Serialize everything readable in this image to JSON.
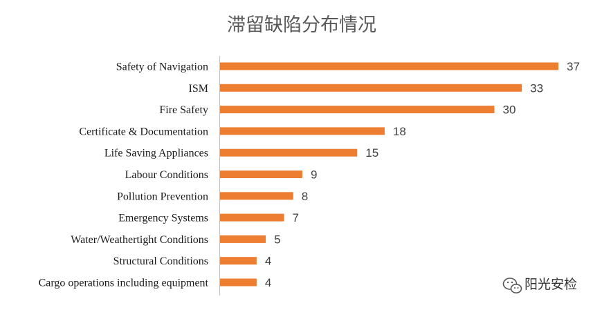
{
  "chart_data": {
    "type": "bar",
    "orientation": "horizontal",
    "title": "滞留缺陷分布情况",
    "categories": [
      "Safety of Navigation",
      "ISM",
      "Fire Safety",
      "Certificate & Documentation",
      "Life Saving Appliances",
      "Labour Conditions",
      "Pollution Prevention",
      "Emergency Systems",
      "Water/Weathertight Conditions",
      "Structural Conditions",
      "Cargo operations including equipment"
    ],
    "values": [
      37,
      33,
      30,
      18,
      15,
      9,
      8,
      7,
      5,
      4,
      4
    ],
    "xlim": [
      0,
      40
    ],
    "grid": false,
    "legend": "none",
    "data_labels": true,
    "colors": {
      "bar": "#ED7D31",
      "axis": "#BFBFBF"
    }
  },
  "watermark": {
    "text": "阳光安检",
    "icon": "wechat-icon"
  }
}
